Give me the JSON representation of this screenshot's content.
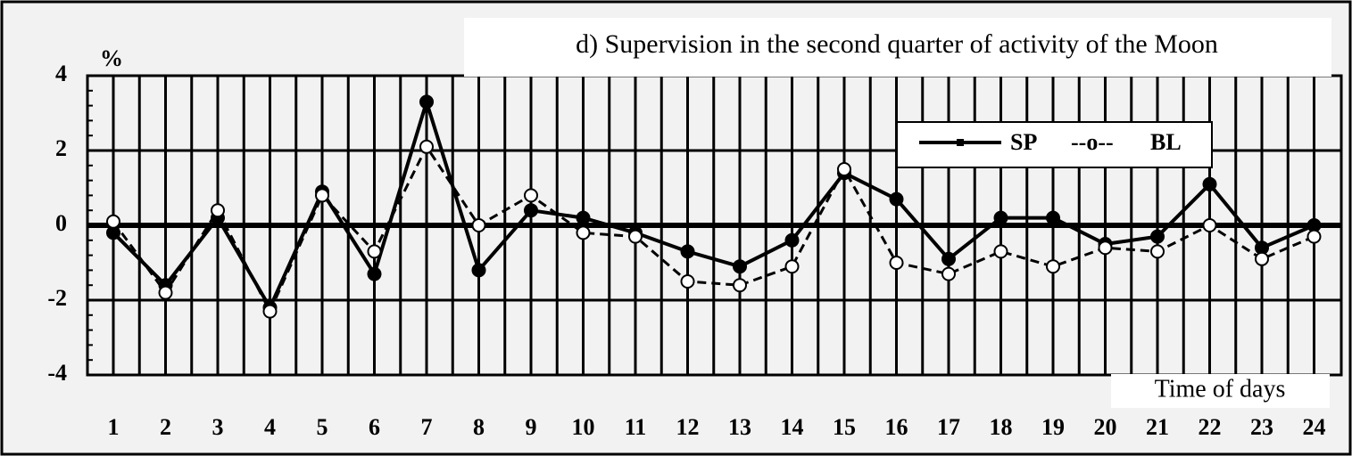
{
  "chart_data": {
    "type": "line",
    "title": "d) Supervision in the second quarter of activity of the Moon",
    "y_label": "%",
    "x_label": "Time of days",
    "categories": [
      "1",
      "2",
      "3",
      "4",
      "5",
      "6",
      "7",
      "8",
      "9",
      "10",
      "11",
      "12",
      "13",
      "14",
      "15",
      "16",
      "17",
      "18",
      "19",
      "20",
      "21",
      "22",
      "23",
      "24"
    ],
    "series": [
      {
        "name": "SP",
        "color": "#000000",
        "marker": "filled",
        "dashed": false,
        "values": [
          -0.2,
          -1.6,
          0.2,
          -2.2,
          0.9,
          -1.3,
          3.3,
          -1.2,
          0.4,
          0.2,
          -0.2,
          -0.7,
          -1.1,
          -0.4,
          1.4,
          0.7,
          -0.9,
          0.2,
          0.2,
          -0.5,
          -0.3,
          1.1,
          -0.6,
          0.0
        ]
      },
      {
        "name": "BL",
        "color": "#000000",
        "marker": "open",
        "dashed": true,
        "values": [
          0.1,
          -1.8,
          0.4,
          -2.3,
          0.8,
          -0.7,
          2.1,
          0.0,
          0.8,
          -0.2,
          -0.3,
          -1.5,
          -1.6,
          -1.1,
          1.5,
          -1.0,
          -1.3,
          -0.7,
          -1.1,
          -0.6,
          -0.7,
          0.0,
          -0.9,
          -0.3
        ]
      }
    ],
    "legend_separator": "--o--",
    "ylim": [
      -4,
      4
    ],
    "yticks": [
      -4,
      -2,
      0,
      2,
      4
    ],
    "grid": true
  }
}
